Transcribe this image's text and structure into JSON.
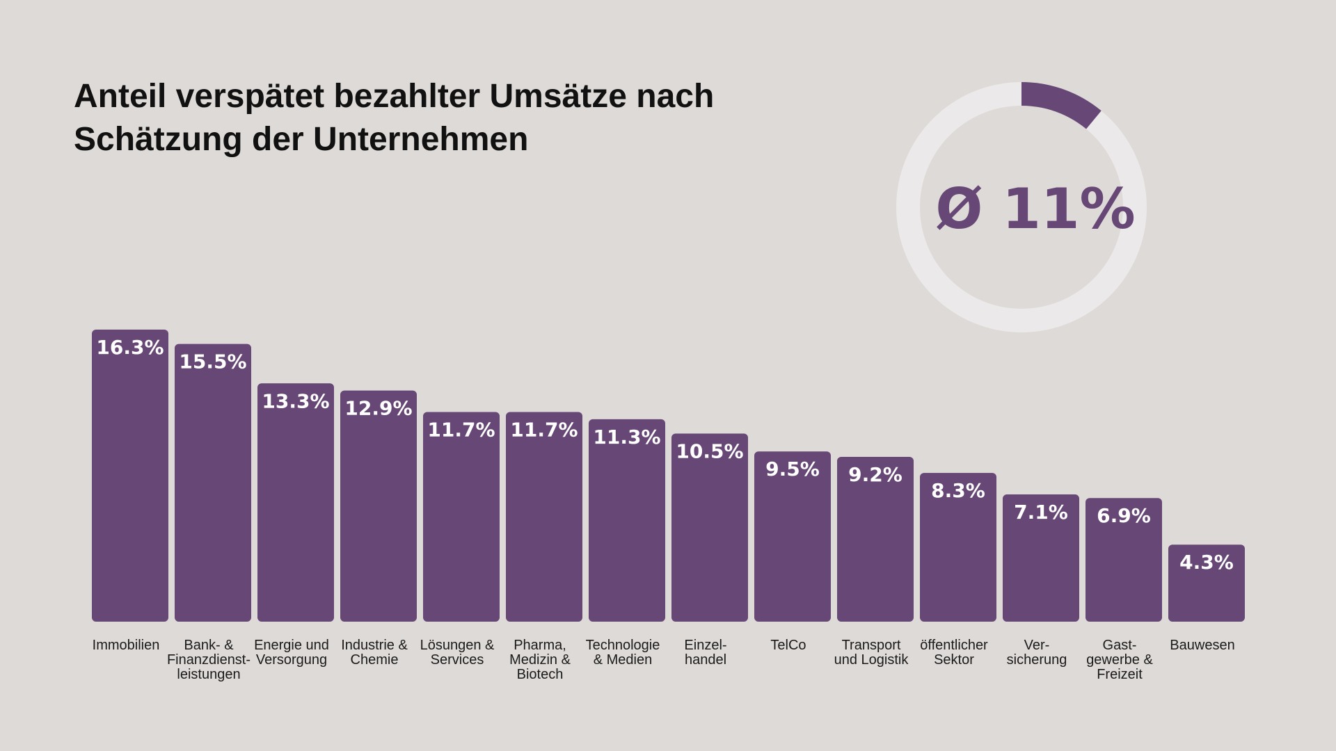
{
  "title_lines": [
    "Anteil verspätet bezahlter Umsätze nach",
    "Schätzung der Unternehmen"
  ],
  "donut": {
    "label": "Ø 11%",
    "value": 11,
    "max": 100
  },
  "colors": {
    "bar": "#664775",
    "bar_text": "#ffffff",
    "donut_track": "#ebe9ea",
    "donut_hole": "#dedad7",
    "label_text": "#1a1a1a"
  },
  "chart_data": {
    "type": "bar",
    "title": "Anteil verspätet bezahlter Umsätze nach Schätzung der Unternehmen",
    "xlabel": "",
    "ylabel": "",
    "ylim": [
      0,
      16.3
    ],
    "grid": false,
    "categories": [
      [
        "Immobilien"
      ],
      [
        "Bank- &",
        "Finanzdienst-",
        "leistungen"
      ],
      [
        "Energie und",
        "Versorgung"
      ],
      [
        "Industrie &",
        "Chemie"
      ],
      [
        "Lösungen &",
        "Services"
      ],
      [
        "Pharma,",
        "Medizin &",
        "Biotech"
      ],
      [
        "Technologie",
        "& Medien"
      ],
      [
        "Einzel-",
        "handel"
      ],
      [
        "TelCo"
      ],
      [
        "Transport",
        "und Logistik"
      ],
      [
        "öffentlicher",
        "Sektor"
      ],
      [
        "Ver-",
        "sicherung"
      ],
      [
        "Gast-",
        "gewerbe &",
        "Freizeit"
      ],
      [
        "Bauwesen"
      ]
    ],
    "values": [
      16.3,
      15.5,
      13.3,
      12.9,
      11.7,
      11.7,
      11.3,
      10.5,
      9.5,
      9.2,
      8.3,
      7.1,
      6.9,
      4.3
    ],
    "value_labels": [
      "16.3%",
      "15.5%",
      "13.3%",
      "12.9%",
      "11.7%",
      "11.7%",
      "11.3%",
      "10.5%",
      "9.5%",
      "9.2%",
      "8.3%",
      "7.1%",
      "6.9%",
      "4.3%"
    ]
  }
}
